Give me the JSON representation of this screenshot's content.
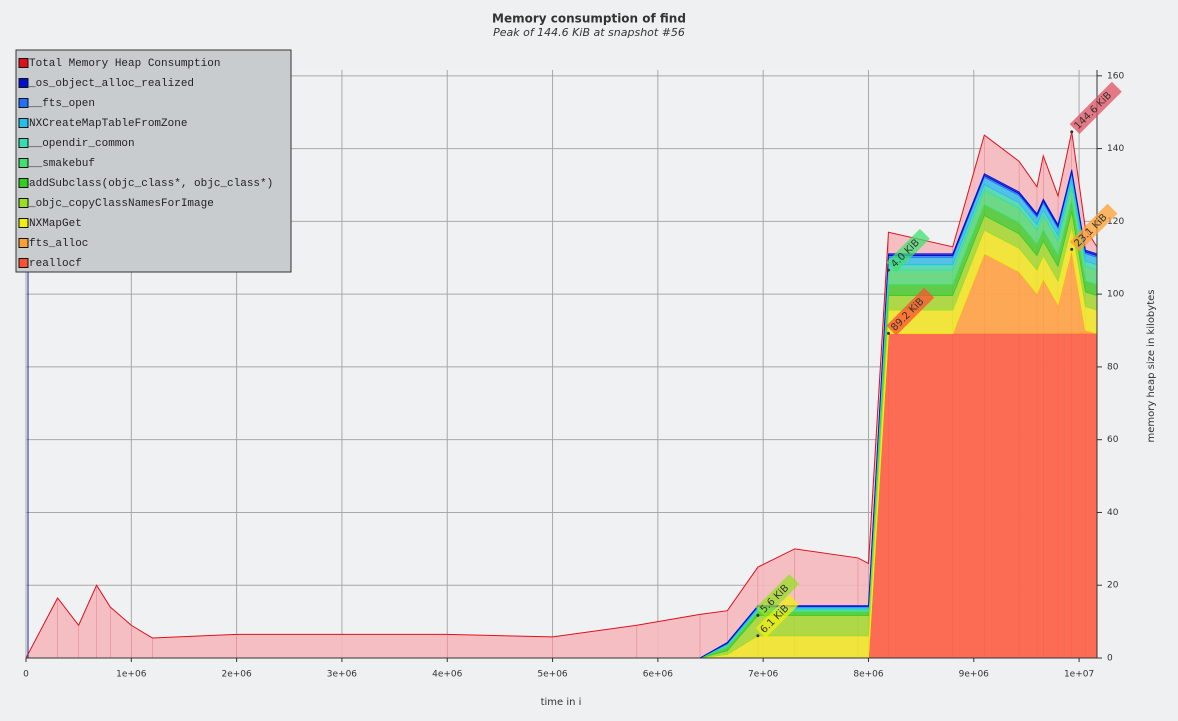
{
  "chart_data": {
    "type": "stacked-area",
    "title": "Memory consumption of find",
    "subtitle": "Peak of 144.6 KiB at snapshot #56",
    "x_label": "time in i",
    "y_label": "memory heap size in kilobytes",
    "x": [
      0,
      300000,
      500000,
      670000,
      800000,
      1000000,
      1200000,
      2000000,
      4000000,
      5000000,
      5800000,
      6400000,
      6660000,
      6950000,
      7300000,
      7900000,
      8000000,
      8190000,
      8800000,
      9100000,
      9430000,
      9600000,
      9660000,
      9800000,
      9930000,
      10060000,
      10170000
    ],
    "xlim": [
      0,
      10170000
    ],
    "xticks": [
      0,
      {
        "value": 1000000,
        "label": "1e+06"
      },
      {
        "value": 2000000,
        "label": "2e+06"
      },
      {
        "value": 3000000,
        "label": "3e+06"
      },
      {
        "value": 4000000,
        "label": "4e+06"
      },
      {
        "value": 5000000,
        "label": "5e+06"
      },
      {
        "value": 6000000,
        "label": "6e+06"
      },
      {
        "value": 7000000,
        "label": "7e+06"
      },
      {
        "value": 8000000,
        "label": "8e+06"
      },
      {
        "value": 9000000,
        "label": "9e+06"
      },
      {
        "value": 10000000,
        "label": "1e+07"
      }
    ],
    "ylim": [
      0,
      161.6
    ],
    "yticks": [
      0,
      20,
      40,
      60,
      80,
      100,
      120,
      140,
      160
    ],
    "grid": true,
    "legend": "top-left",
    "total": {
      "name": "Total Memory Heap Consumption",
      "color": "#e0101a",
      "values": [
        0,
        16.5,
        9,
        20,
        14,
        9,
        5.5,
        6.5,
        6.5,
        5.8,
        9,
        12,
        13,
        25,
        30,
        27.5,
        26,
        117,
        113,
        143.7,
        136.5,
        129.5,
        138,
        127,
        144.6,
        118,
        113
      ],
      "value_labels": [
        null,
        null,
        null,
        null,
        null,
        null,
        null,
        null,
        null,
        null,
        null,
        null,
        null,
        null,
        null,
        null,
        null,
        null,
        null,
        null,
        null,
        null,
        null,
        null,
        "144.6 KiB",
        null,
        null
      ]
    },
    "series": [
      {
        "name": "_os_object_alloc_realized",
        "color": "#0010d0",
        "values": [
          0,
          0,
          0,
          0,
          0,
          0,
          0,
          0,
          0,
          0,
          0,
          0,
          0.2,
          0.2,
          0.2,
          0.2,
          0.2,
          0.5,
          0.5,
          0.5,
          0.5,
          0.5,
          0.5,
          0.5,
          0.5,
          0.5,
          0.5
        ]
      },
      {
        "name": "__fts_open",
        "color": "#2070ff",
        "values": [
          0,
          0,
          0,
          0,
          0,
          0,
          0,
          0,
          0,
          0,
          0,
          0,
          0.2,
          0.2,
          0.2,
          0.2,
          0.2,
          0.5,
          0.5,
          0.5,
          0.5,
          0.5,
          0.5,
          0.5,
          0.5,
          0.5,
          0.5
        ]
      },
      {
        "name": "NXCreateMapTableFromZone",
        "color": "#20c0f0",
        "values": [
          0,
          0,
          0,
          0,
          0,
          0,
          0,
          0,
          0,
          0,
          0,
          0,
          0.2,
          0.5,
          0.5,
          0.5,
          0.5,
          2,
          2,
          2,
          2,
          2,
          2,
          2,
          2,
          2,
          2
        ]
      },
      {
        "name": "__opendir_common",
        "color": "#30e0b0",
        "values": [
          0,
          0,
          0,
          0,
          0,
          0,
          0,
          0,
          0,
          0,
          0,
          0,
          0.2,
          0.3,
          0.3,
          0.3,
          0.3,
          1.5,
          1.5,
          1.5,
          1.5,
          1.5,
          1.5,
          1.5,
          1.5,
          1.5,
          1.5
        ]
      },
      {
        "name": "__smakebuf",
        "color": "#40e070",
        "values": [
          0,
          0,
          0,
          0,
          0,
          0,
          0,
          0,
          0,
          0,
          0,
          0,
          0.5,
          0.5,
          0.5,
          0.5,
          0.5,
          4,
          4,
          4,
          4,
          4,
          4,
          4,
          4,
          4,
          4
        ],
        "value_labels": [
          null,
          null,
          null,
          null,
          null,
          null,
          null,
          null,
          null,
          null,
          null,
          null,
          null,
          null,
          null,
          null,
          null,
          "4.0 KiB",
          null,
          null,
          null,
          null,
          null,
          null,
          null,
          null,
          null
        ]
      },
      {
        "name": "addSubclass(objc_class*, objc_class*)",
        "color": "#30d020",
        "values": [
          0,
          0,
          0,
          0,
          0,
          0,
          0,
          0,
          0,
          0,
          0,
          0,
          1,
          1,
          1,
          1,
          1,
          3,
          3,
          3,
          3,
          3,
          3,
          3,
          3,
          3,
          3
        ]
      },
      {
        "name": "_objc_copyClassNamesForImage",
        "color": "#98e020",
        "values": [
          0,
          0,
          0,
          0,
          0,
          0,
          0,
          0,
          0,
          0,
          0,
          0,
          1,
          5.6,
          5.6,
          5.6,
          5.6,
          4,
          4,
          4,
          4,
          4,
          4,
          4,
          4,
          4,
          4
        ],
        "value_labels": [
          null,
          null,
          null,
          null,
          null,
          null,
          null,
          null,
          null,
          null,
          null,
          null,
          null,
          "5.6 KiB",
          null,
          null,
          null,
          null,
          null,
          null,
          null,
          null,
          null,
          null,
          null,
          null,
          null
        ]
      },
      {
        "name": "NXMapGet",
        "color": "#f0f010",
        "values": [
          0,
          0,
          0,
          0,
          0,
          0,
          0,
          0,
          0,
          0,
          0,
          0,
          1,
          6.1,
          6.1,
          6.1,
          6.1,
          6.4,
          6.4,
          6.4,
          6.4,
          6.4,
          6.4,
          6.4,
          6.4,
          6.4,
          6.4
        ],
        "value_labels": [
          null,
          null,
          null,
          null,
          null,
          null,
          null,
          null,
          null,
          null,
          null,
          null,
          null,
          "6.1 KiB",
          null,
          null,
          null,
          null,
          null,
          null,
          null,
          null,
          null,
          null,
          null,
          null,
          null
        ]
      },
      {
        "name": "fts_alloc",
        "color": "#ffa030",
        "values": [
          0,
          0,
          0,
          0,
          0,
          0,
          0,
          0,
          0,
          0,
          0,
          0,
          0,
          0,
          0,
          0,
          0,
          0,
          0,
          22,
          17,
          11,
          15,
          8,
          23.1,
          1,
          0
        ],
        "value_labels": [
          null,
          null,
          null,
          null,
          null,
          null,
          null,
          null,
          null,
          null,
          null,
          null,
          null,
          null,
          null,
          null,
          null,
          null,
          null,
          null,
          null,
          null,
          null,
          null,
          "23.1 KiB",
          null,
          null
        ]
      },
      {
        "name": "reallocf",
        "color": "#ff5030",
        "values": [
          0,
          0,
          0,
          0,
          0,
          0,
          0,
          0,
          0,
          0,
          0,
          0,
          0,
          0,
          0,
          0,
          0,
          89.2,
          89.2,
          89.2,
          89.2,
          89.2,
          89.2,
          89.2,
          89.2,
          89.2,
          89.2
        ],
        "value_labels": [
          null,
          null,
          null,
          null,
          null,
          null,
          null,
          null,
          null,
          null,
          null,
          null,
          null,
          null,
          null,
          null,
          null,
          "89.2 KiB",
          null,
          null,
          null,
          null,
          null,
          null,
          null,
          null,
          null
        ]
      }
    ]
  }
}
